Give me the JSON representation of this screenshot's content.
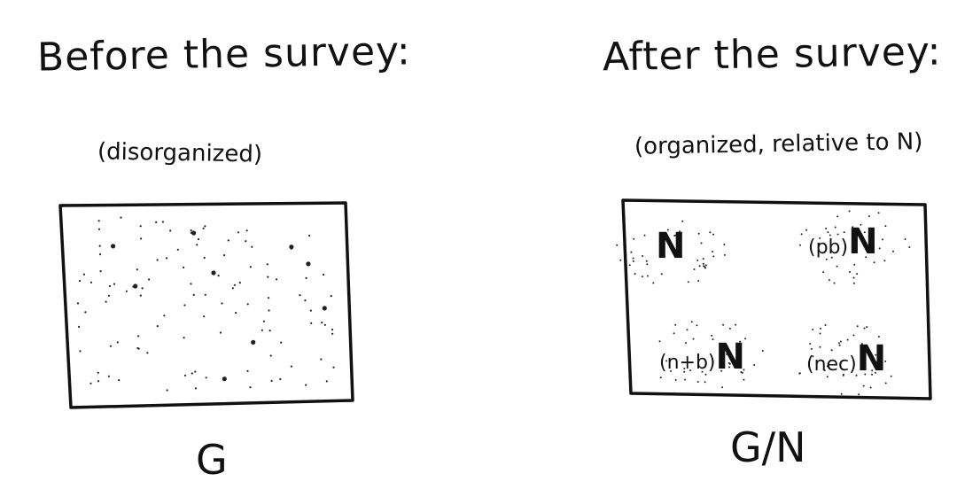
{
  "left": {
    "title": "Before the survey:",
    "subtitle": "(disorganized)",
    "label": "G"
  },
  "right": {
    "title": "After the survey:",
    "subtitle": "(organized, relative to N)",
    "label": "G/N",
    "quadrants": [
      {
        "tag": "",
        "symbol": "N"
      },
      {
        "tag": "(pb)",
        "symbol": "N"
      },
      {
        "tag": "(n+b)",
        "symbol": "N"
      },
      {
        "tag": "(nec)",
        "symbol": "N"
      }
    ]
  }
}
